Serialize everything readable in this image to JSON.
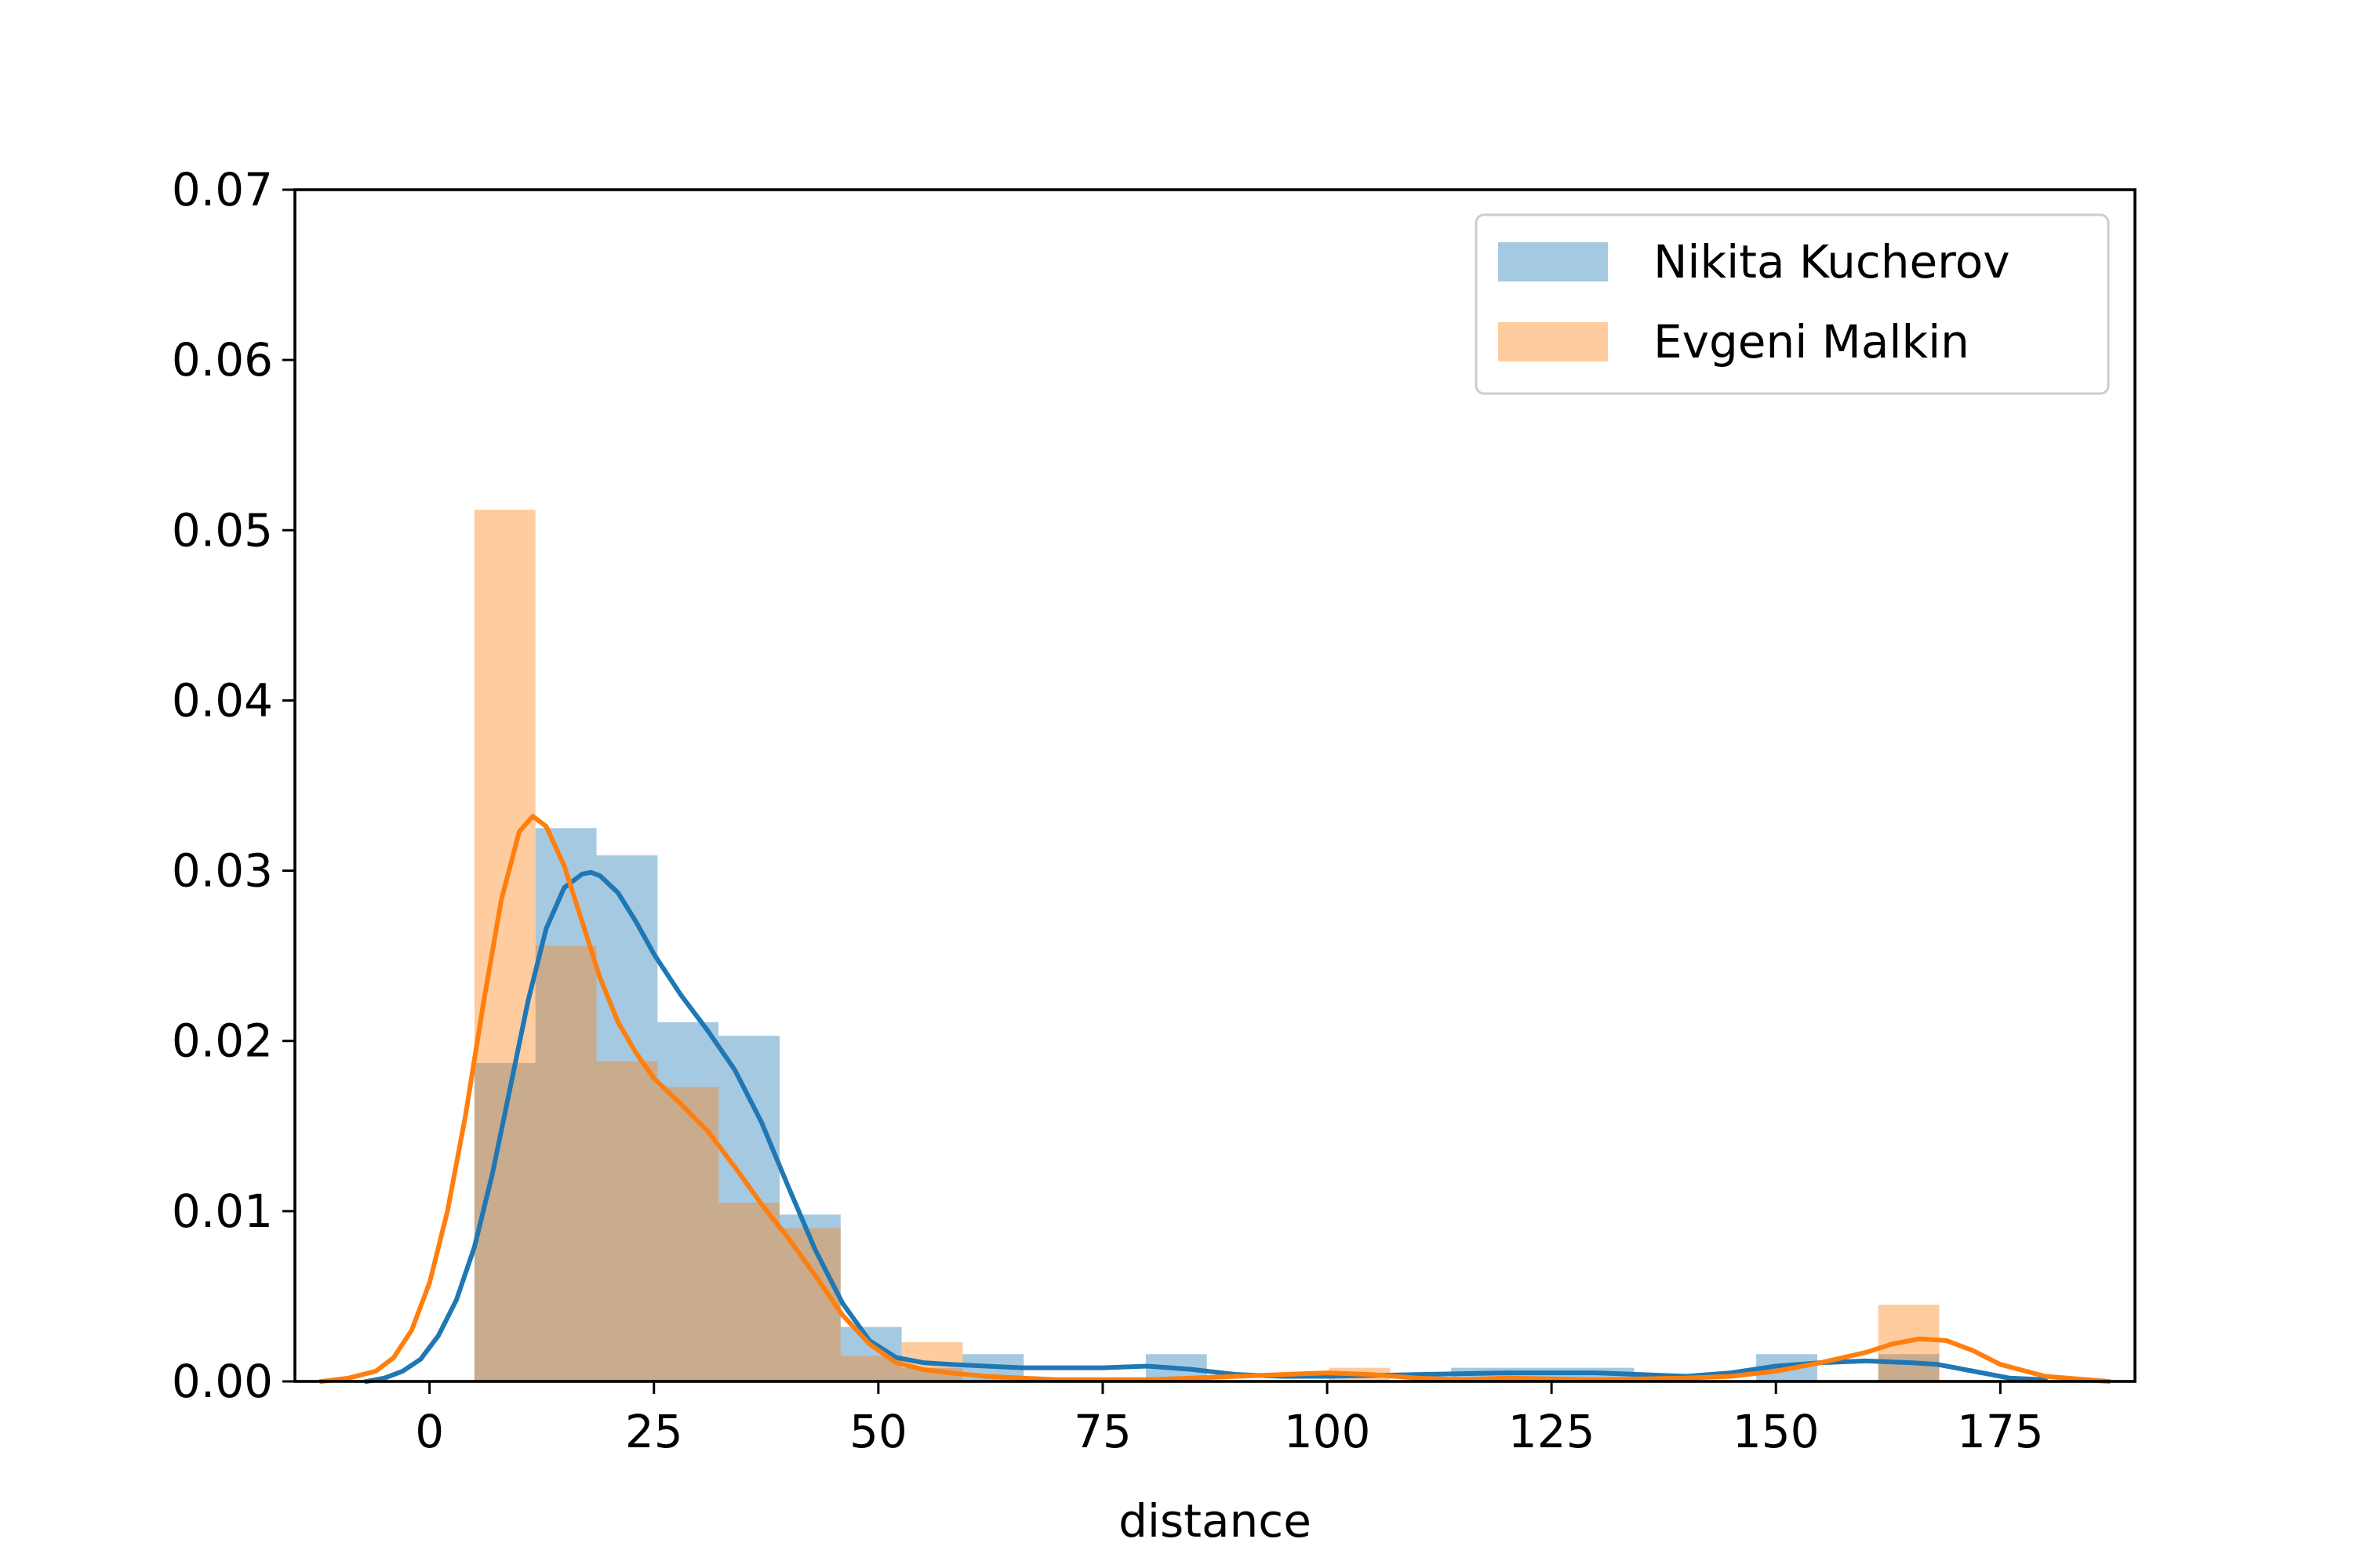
{
  "chart_data": {
    "type": "histogram",
    "xlabel": "distance",
    "ylabel": "",
    "xlim": [
      -15,
      190
    ],
    "ylim": [
      0,
      0.07
    ],
    "xticks": [
      0,
      25,
      50,
      75,
      100,
      125,
      150,
      175
    ],
    "xtick_labels": [
      "0",
      "25",
      "50",
      "75",
      "100",
      "125",
      "150",
      "175"
    ],
    "yticks": [
      0.0,
      0.01,
      0.02,
      0.03,
      0.04,
      0.05,
      0.06,
      0.07
    ],
    "ytick_labels": [
      "0.00",
      "0.01",
      "0.02",
      "0.03",
      "0.04",
      "0.05",
      "0.06",
      "0.07"
    ],
    "legend_position": "top-right",
    "series": [
      {
        "name": "Nikita Kucherov",
        "bar_color": "#1f77b4",
        "line_color": "#1f77b4",
        "bins": [
          {
            "x0": 5,
            "x1": 11.8,
            "density": 0.0187
          },
          {
            "x0": 11.8,
            "x1": 18.6,
            "density": 0.0325
          },
          {
            "x0": 18.6,
            "x1": 25.4,
            "density": 0.0309
          },
          {
            "x0": 25.4,
            "x1": 32.2,
            "density": 0.0211
          },
          {
            "x0": 32.2,
            "x1": 39.0,
            "density": 0.0203
          },
          {
            "x0": 39.0,
            "x1": 45.8,
            "density": 0.0098
          },
          {
            "x0": 45.8,
            "x1": 52.6,
            "density": 0.0032
          },
          {
            "x0": 52.6,
            "x1": 59.4,
            "density": 0.0008
          },
          {
            "x0": 59.4,
            "x1": 66.2,
            "density": 0.0016
          },
          {
            "x0": 66.2,
            "x1": 73.0,
            "density": 0.0
          },
          {
            "x0": 73.0,
            "x1": 79.8,
            "density": 0.0
          },
          {
            "x0": 79.8,
            "x1": 86.6,
            "density": 0.0016
          },
          {
            "x0": 86.6,
            "x1": 93.4,
            "density": 0.0
          },
          {
            "x0": 93.4,
            "x1": 100.2,
            "density": 0.0
          },
          {
            "x0": 100.2,
            "x1": 107.0,
            "density": 0.0
          },
          {
            "x0": 107.0,
            "x1": 113.8,
            "density": 0.0
          },
          {
            "x0": 113.8,
            "x1": 120.6,
            "density": 0.0008
          },
          {
            "x0": 120.6,
            "x1": 127.4,
            "density": 0.0008
          },
          {
            "x0": 127.4,
            "x1": 134.2,
            "density": 0.0008
          },
          {
            "x0": 134.2,
            "x1": 141.0,
            "density": 0.0
          },
          {
            "x0": 141.0,
            "x1": 147.8,
            "density": 0.0
          },
          {
            "x0": 147.8,
            "x1": 154.6,
            "density": 0.0016
          },
          {
            "x0": 154.6,
            "x1": 161.4,
            "density": 0.0
          },
          {
            "x0": 161.4,
            "x1": 168.2,
            "density": 0.0016
          }
        ],
        "kde": {
          "x": [
            -7,
            -5,
            -3,
            -1,
            1,
            3,
            5,
            7,
            9,
            11,
            13,
            15,
            17,
            18,
            19,
            21,
            23,
            25,
            28,
            31,
            34,
            37,
            40,
            43,
            46,
            49,
            52,
            55,
            58,
            62,
            66,
            70,
            75,
            80,
            85,
            90,
            95,
            100,
            110,
            120,
            125,
            130,
            135,
            140,
            145,
            150,
            155,
            160,
            165,
            168,
            172,
            176,
            180
          ],
          "y": [
            0.0,
            0.0002,
            0.0006,
            0.0013,
            0.0027,
            0.0048,
            0.0079,
            0.0122,
            0.0173,
            0.0224,
            0.0266,
            0.029,
            0.0298,
            0.0299,
            0.0297,
            0.0287,
            0.027,
            0.0251,
            0.0227,
            0.0206,
            0.0183,
            0.0152,
            0.0114,
            0.0077,
            0.0046,
            0.0024,
            0.0014,
            0.0011,
            0.001,
            0.0009,
            0.0008,
            0.0008,
            0.0008,
            0.0009,
            0.0007,
            0.0004,
            0.0003,
            0.0003,
            0.0004,
            0.0005,
            0.0005,
            0.0005,
            0.0004,
            0.0003,
            0.0005,
            0.0009,
            0.0011,
            0.0012,
            0.0011,
            0.001,
            0.0006,
            0.0002,
            0.0001
          ]
        }
      },
      {
        "name": "Evgeni Malkin",
        "bar_color": "#ff7f0e",
        "line_color": "#ff7f0e",
        "bins": [
          {
            "x0": 5,
            "x1": 11.8,
            "density": 0.0512
          },
          {
            "x0": 11.8,
            "x1": 18.6,
            "density": 0.0256
          },
          {
            "x0": 18.6,
            "x1": 25.4,
            "density": 0.0188
          },
          {
            "x0": 25.4,
            "x1": 32.2,
            "density": 0.0173
          },
          {
            "x0": 32.2,
            "x1": 39.0,
            "density": 0.0105
          },
          {
            "x0": 39.0,
            "x1": 45.8,
            "density": 0.009
          },
          {
            "x0": 45.8,
            "x1": 52.6,
            "density": 0.0015
          },
          {
            "x0": 52.6,
            "x1": 59.4,
            "density": 0.0023
          },
          {
            "x0": 59.4,
            "x1": 66.2,
            "density": 0.0
          },
          {
            "x0": 66.2,
            "x1": 73.0,
            "density": 0.0
          },
          {
            "x0": 73.0,
            "x1": 79.8,
            "density": 0.0
          },
          {
            "x0": 79.8,
            "x1": 86.6,
            "density": 0.0
          },
          {
            "x0": 86.6,
            "x1": 93.4,
            "density": 0.0
          },
          {
            "x0": 93.4,
            "x1": 100.2,
            "density": 0.0
          },
          {
            "x0": 100.2,
            "x1": 107.0,
            "density": 0.0008
          },
          {
            "x0": 107.0,
            "x1": 113.8,
            "density": 0.0
          },
          {
            "x0": 113.8,
            "x1": 120.6,
            "density": 0.0
          },
          {
            "x0": 120.6,
            "x1": 127.4,
            "density": 0.0
          },
          {
            "x0": 127.4,
            "x1": 134.2,
            "density": 0.0
          },
          {
            "x0": 134.2,
            "x1": 141.0,
            "density": 0.0
          },
          {
            "x0": 141.0,
            "x1": 147.8,
            "density": 0.0
          },
          {
            "x0": 147.8,
            "x1": 154.6,
            "density": 0.0
          },
          {
            "x0": 154.6,
            "x1": 161.4,
            "density": 0.0
          },
          {
            "x0": 161.4,
            "x1": 168.2,
            "density": 0.0045
          }
        ],
        "kde": {
          "x": [
            -12,
            -9,
            -6,
            -4,
            -2,
            0,
            2,
            4,
            6,
            8,
            10,
            11.5,
            13,
            15,
            17,
            19,
            21,
            23,
            25,
            28,
            31,
            34,
            37,
            40,
            43,
            46,
            49,
            52,
            55,
            58,
            62,
            66,
            70,
            75,
            80,
            85,
            90,
            95,
            100,
            105,
            110,
            115,
            120,
            130,
            140,
            145,
            150,
            155,
            160,
            163,
            166,
            169,
            172,
            175,
            180,
            187
          ],
          "y": [
            0.0,
            0.0002,
            0.0006,
            0.0014,
            0.003,
            0.0058,
            0.01,
            0.0156,
            0.0222,
            0.0283,
            0.0323,
            0.0332,
            0.0326,
            0.0303,
            0.027,
            0.0237,
            0.0211,
            0.0193,
            0.0178,
            0.0163,
            0.0147,
            0.0126,
            0.0104,
            0.0084,
            0.0062,
            0.0039,
            0.0022,
            0.0011,
            0.0007,
            0.0005,
            0.0003,
            0.0002,
            0.0001,
            0.0001,
            0.0001,
            0.0002,
            0.0003,
            0.0004,
            0.0005,
            0.0004,
            0.0002,
            0.0001,
            0.0002,
            0.0001,
            0.0002,
            0.0003,
            0.0006,
            0.0011,
            0.0017,
            0.0022,
            0.0025,
            0.0024,
            0.0018,
            0.001,
            0.0003,
            0.0
          ]
        }
      }
    ]
  }
}
